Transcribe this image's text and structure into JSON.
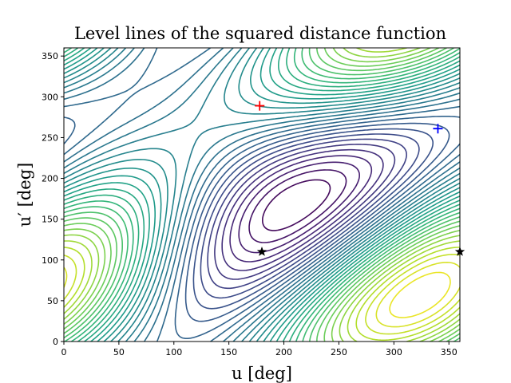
{
  "chart_data": {
    "type": "contour",
    "title": "Level lines of the squared distance function",
    "xlabel": "u [deg]",
    "ylabel": "u′ [deg]",
    "xlim": [
      0,
      360
    ],
    "ylim": [
      0,
      360
    ],
    "xticks": [
      0,
      50,
      100,
      150,
      200,
      250,
      300,
      350
    ],
    "yticks": [
      0,
      50,
      100,
      150,
      200,
      250,
      300,
      350
    ],
    "colormap": "viridis",
    "grid": false,
    "legend": "none",
    "markers": [
      {
        "symbol": "+",
        "color": "#ff0000",
        "x": 178,
        "y": 289
      },
      {
        "symbol": "+",
        "color": "#0000ff",
        "x": 340,
        "y": 261
      },
      {
        "symbol": "star",
        "color": "#000000",
        "x": 180,
        "y": 110
      },
      {
        "symbol": "star",
        "color": "#000000",
        "x": 360,
        "y": 110
      }
    ]
  }
}
